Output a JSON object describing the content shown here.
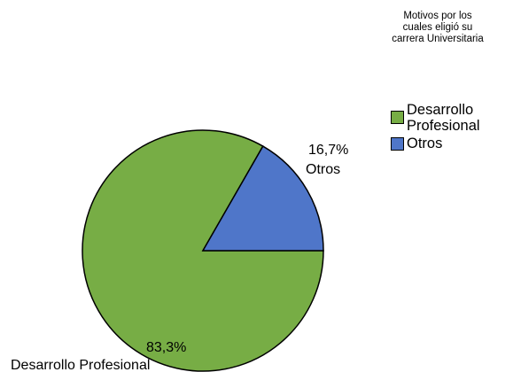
{
  "chart_data": {
    "type": "pie",
    "title": "",
    "legend": {
      "title": "Motivos por los cuales eligió su carrera Universitaria",
      "placement": "right",
      "entries": [
        {
          "name": "Desarrollo Profesional",
          "color": "#77ad45"
        },
        {
          "name": "Otros",
          "color": "#4f76c9"
        }
      ]
    },
    "slices": [
      {
        "name": "Desarrollo Profesional",
        "value": 83.3,
        "percent_label": "83,3%",
        "category_label": "Desarrollo Profesional",
        "color": "#77ad45"
      },
      {
        "name": "Otros",
        "value": 16.7,
        "percent_label": "16,7%",
        "category_label": "Otros",
        "color": "#4f76c9"
      }
    ]
  }
}
